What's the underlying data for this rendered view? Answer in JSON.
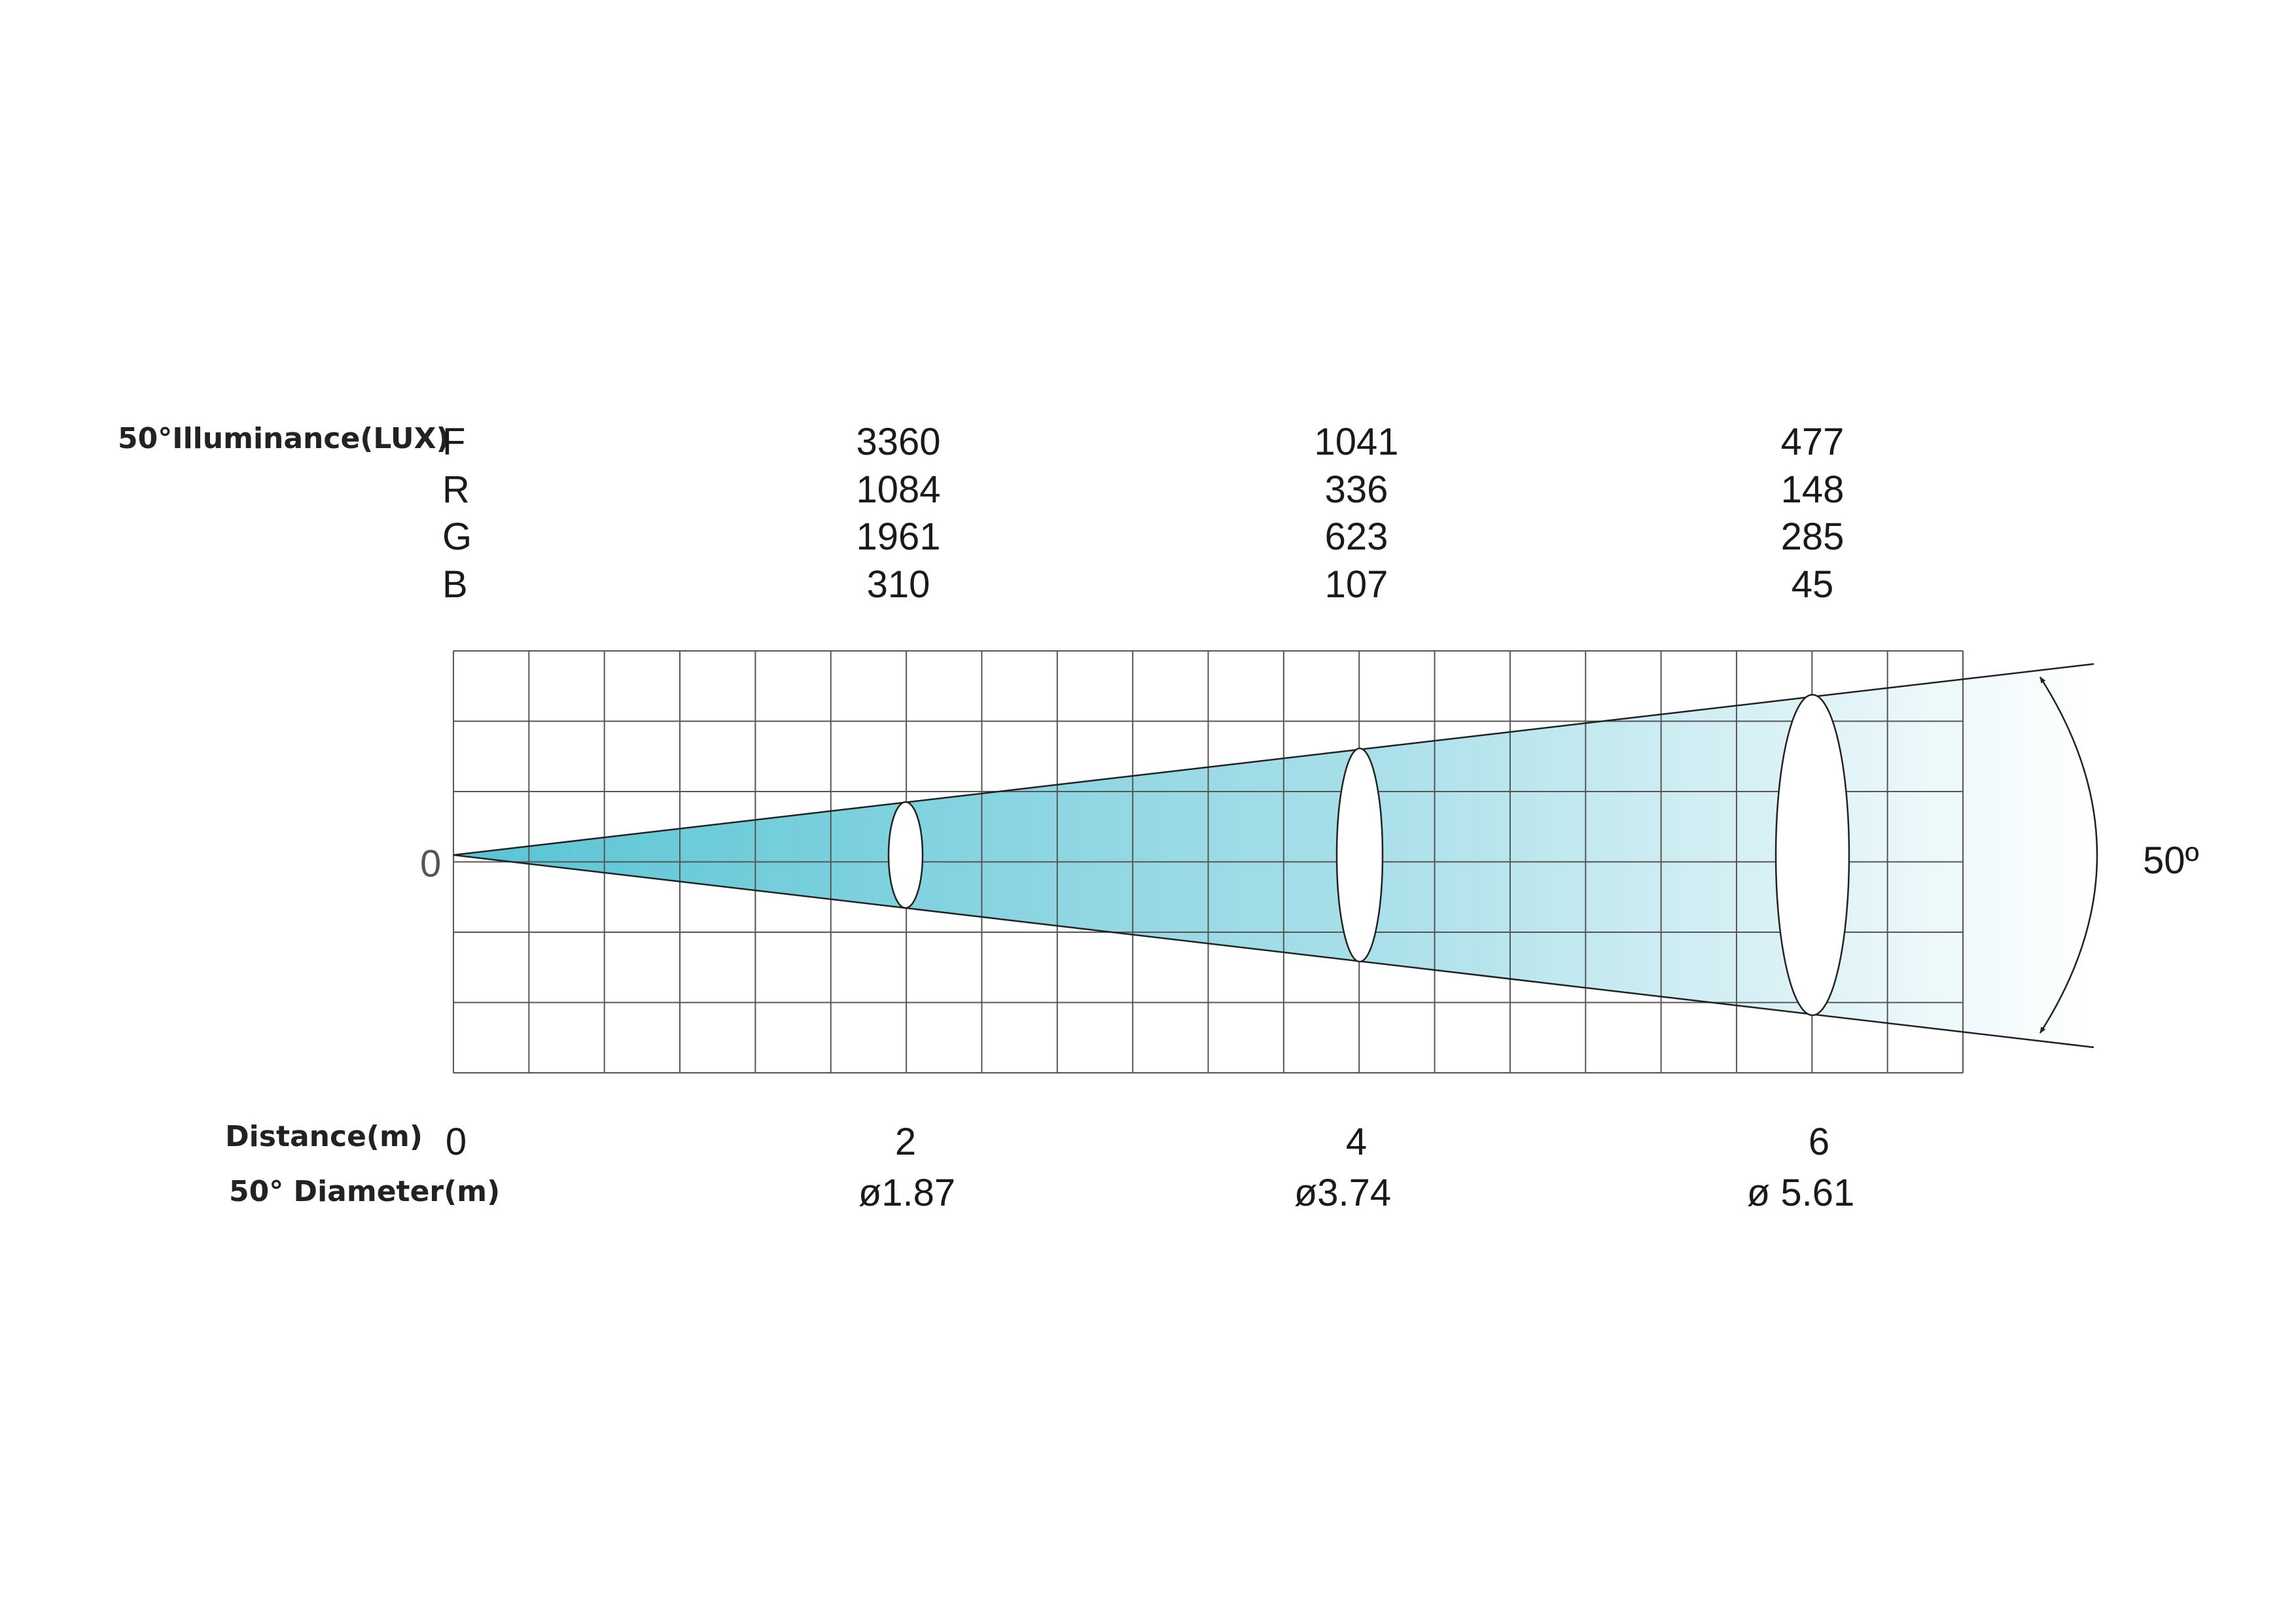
{
  "illuminance": {
    "label": "50°Illuminance(LUX)",
    "rows": [
      {
        "key": "F",
        "values": [
          "3360",
          "1041",
          "477"
        ]
      },
      {
        "key": "R",
        "values": [
          "1084",
          "336",
          "148"
        ]
      },
      {
        "key": "G",
        "values": [
          "1961",
          "623",
          "285"
        ]
      },
      {
        "key": "B",
        "values": [
          "310",
          "107",
          "45"
        ]
      }
    ]
  },
  "axis": {
    "origin_label": "0",
    "distance_label": "Distance(m)",
    "distance_ticks": [
      "0",
      "2",
      "4",
      "6"
    ],
    "diameter_label": "50° Diameter(m)",
    "diameters": [
      "ø1.87",
      "ø3.74",
      "ø 5.61"
    ]
  },
  "beam": {
    "angle_label": "50º",
    "color_near": "#58c4d4",
    "color_far": "#ffffff"
  }
}
